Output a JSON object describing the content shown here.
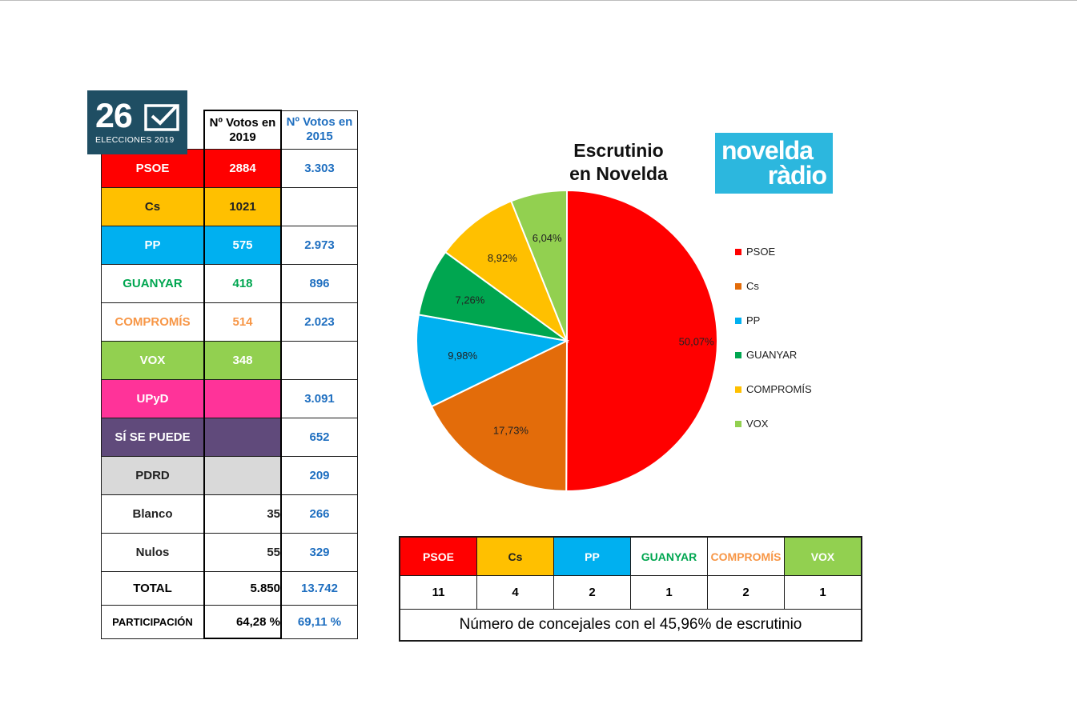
{
  "badge": {
    "number": "26",
    "label": "ELECCIONES 2019"
  },
  "results_table": {
    "header_2019": "Nº Votos en 2019",
    "header_2015": "Nº Votos en 2015",
    "rows": [
      {
        "party": "PSOE",
        "v2019": "2884",
        "v2015": "3.303",
        "bg": "#ff0000",
        "fg": "#ffffff",
        "bg2019": "#ff0000",
        "fg2019": "#ffffff",
        "align2019": "center"
      },
      {
        "party": "Cs",
        "v2019": "1021",
        "v2015": "",
        "bg": "#ffc000",
        "fg": "#222222",
        "bg2019": "#ffc000",
        "fg2019": "#222222",
        "align2019": "center"
      },
      {
        "party": "PP",
        "v2019": "575",
        "v2015": "2.973",
        "bg": "#00b0f0",
        "fg": "#ffffff",
        "bg2019": "#00b0f0",
        "fg2019": "#ffffff",
        "align2019": "center"
      },
      {
        "party": "GUANYAR",
        "v2019": "418",
        "v2015": "896",
        "bg": "#ffffff",
        "fg": "#00a650",
        "bg2019": "#ffffff",
        "fg2019": "#00a650",
        "align2019": "center"
      },
      {
        "party": "COMPROMÍS",
        "v2019": "514",
        "v2015": "2.023",
        "bg": "#ffffff",
        "fg": "#f79646",
        "bg2019": "#ffffff",
        "fg2019": "#f79646",
        "align2019": "center"
      },
      {
        "party": "VOX",
        "v2019": "348",
        "v2015": "",
        "bg": "#92d050",
        "fg": "#ffffff",
        "bg2019": "#92d050",
        "fg2019": "#ffffff",
        "align2019": "center"
      },
      {
        "party": "UPyD",
        "v2019": "",
        "v2015": "3.091",
        "bg": "#ff3399",
        "fg": "#ffffff",
        "bg2019": "#ff3399",
        "fg2019": "#ffffff",
        "align2019": "center"
      },
      {
        "party": "SÍ SE PUEDE",
        "v2019": "",
        "v2015": "652",
        "bg": "#604a7b",
        "fg": "#ffffff",
        "bg2019": "#604a7b",
        "fg2019": "#ffffff",
        "align2019": "center"
      },
      {
        "party": "PDRD",
        "v2019": "",
        "v2015": "209",
        "bg": "#d9d9d9",
        "fg": "#222222",
        "bg2019": "#d9d9d9",
        "fg2019": "#222222",
        "align2019": "center"
      },
      {
        "party": "Blanco",
        "v2019": "35",
        "v2015": "266",
        "bg": "#ffffff",
        "fg": "#222222",
        "bg2019": "#ffffff",
        "fg2019": "#222222",
        "align2019": "right"
      },
      {
        "party": "Nulos",
        "v2019": "55",
        "v2015": "329",
        "bg": "#ffffff",
        "fg": "#222222",
        "bg2019": "#ffffff",
        "fg2019": "#222222",
        "align2019": "right"
      }
    ],
    "total": {
      "label": "TOTAL",
      "v2019": "5.850",
      "v2015": "13.742"
    },
    "participation": {
      "label": "PARTICIPACIÓN",
      "v2019": "64,28 %",
      "v2015": "69,11 %"
    }
  },
  "chart_title_line1": "Escrutinio",
  "chart_title_line2": "en Novelda",
  "logo": {
    "line1": "novelda",
    "line2": "ràdio"
  },
  "chart_data": {
    "type": "pie",
    "title": "Escrutinio en Novelda",
    "slices": [
      {
        "name": "PSOE",
        "value": 50.07,
        "label": "50,07%",
        "color": "#ff0000"
      },
      {
        "name": "Cs",
        "value": 17.73,
        "label": "17,73%",
        "color": "#e36c0a"
      },
      {
        "name": "PP",
        "value": 9.98,
        "label": "9,98%",
        "color": "#00b0f0"
      },
      {
        "name": "GUANYAR",
        "value": 7.26,
        "label": "7,26%",
        "color": "#00a650"
      },
      {
        "name": "COMPROMÍS",
        "value": 8.92,
        "label": "8,92%",
        "color": "#ffc000"
      },
      {
        "name": "VOX",
        "value": 6.04,
        "label": "6,04%",
        "color": "#92d050"
      }
    ],
    "legend_position": "right"
  },
  "councillors": {
    "parties": [
      {
        "name": "PSOE",
        "seats": "11",
        "bg": "#ff0000",
        "fg": "#ffffff"
      },
      {
        "name": "Cs",
        "seats": "4",
        "bg": "#ffc000",
        "fg": "#222222"
      },
      {
        "name": "PP",
        "seats": "2",
        "bg": "#00b0f0",
        "fg": "#ffffff"
      },
      {
        "name": "GUANYAR",
        "seats": "1",
        "bg": "#ffffff",
        "fg": "#00a650"
      },
      {
        "name": "COMPROMÍS",
        "seats": "2",
        "bg": "#ffffff",
        "fg": "#f79646"
      },
      {
        "name": "VOX",
        "seats": "1",
        "bg": "#92d050",
        "fg": "#ffffff"
      }
    ],
    "note": "Número de concejales con el 45,96% de escrutinio"
  }
}
